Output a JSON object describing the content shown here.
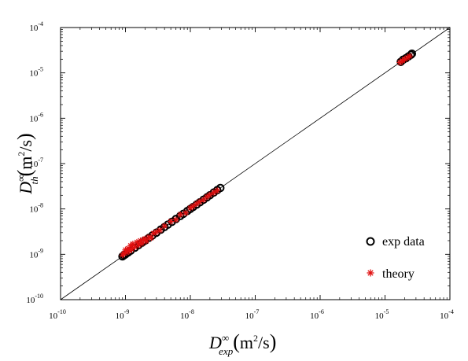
{
  "chart_data": {
    "type": "scatter",
    "xscale": "log",
    "yscale": "log",
    "xlim": [
      1e-10,
      0.0001
    ],
    "ylim": [
      1e-10,
      0.0001
    ],
    "grid": false,
    "legend_position": "bottom-right",
    "x_axis_label": {
      "symbol": "D",
      "superscript": "∞",
      "subscript": "exp",
      "unit": "m",
      "unit_power": "2",
      "unit_tail": "/s"
    },
    "y_axis_label": {
      "symbol": "D",
      "superscript": "∞",
      "subscript": "th",
      "unit": "m",
      "unit_power": "2",
      "unit_tail": "/s"
    },
    "x_ticks": [
      {
        "value": 1e-10,
        "base": "10",
        "exp": "-10"
      },
      {
        "value": 1e-09,
        "base": "10",
        "exp": "-9"
      },
      {
        "value": 1e-08,
        "base": "10",
        "exp": "-8"
      },
      {
        "value": 1e-07,
        "base": "10",
        "exp": "-7"
      },
      {
        "value": 1e-06,
        "base": "10",
        "exp": "-6"
      },
      {
        "value": 1e-05,
        "base": "10",
        "exp": "-5"
      },
      {
        "value": 0.0001,
        "base": "10",
        "exp": "-4"
      }
    ],
    "y_ticks": [
      {
        "value": 1e-10,
        "base": "10",
        "exp": "-10"
      },
      {
        "value": 1e-09,
        "base": "10",
        "exp": "-9"
      },
      {
        "value": 1e-08,
        "base": "10",
        "exp": "-8"
      },
      {
        "value": 1e-07,
        "base": "10",
        "exp": "-7"
      },
      {
        "value": 1e-06,
        "base": "10",
        "exp": "-6"
      },
      {
        "value": 1e-05,
        "base": "10",
        "exp": "-5"
      },
      {
        "value": 0.0001,
        "base": "10",
        "exp": "-4"
      }
    ],
    "reference_line": {
      "x": [
        1e-10,
        0.0001
      ],
      "y": [
        1e-10,
        0.0001
      ],
      "color": "#000000"
    },
    "series": [
      {
        "name": "exp data",
        "marker": "circle-open",
        "color": "#000000",
        "points": [
          [
            9e-10,
            9e-10
          ],
          [
            9.5e-10,
            9.5e-10
          ],
          [
            1e-09,
            1e-09
          ],
          [
            1.1e-09,
            1.1e-09
          ],
          [
            1.2e-09,
            1.2e-09
          ],
          [
            1.4e-09,
            1.4e-09
          ],
          [
            1.6e-09,
            1.6e-09
          ],
          [
            1.8e-09,
            1.8e-09
          ],
          [
            2e-09,
            2e-09
          ],
          [
            2.3e-09,
            2.3e-09
          ],
          [
            2.6e-09,
            2.6e-09
          ],
          [
            3e-09,
            3e-09
          ],
          [
            3.5e-09,
            3.5e-09
          ],
          [
            4e-09,
            4e-09
          ],
          [
            4.5e-09,
            4.5e-09
          ],
          [
            5.2e-09,
            5.2e-09
          ],
          [
            6e-09,
            6e-09
          ],
          [
            7e-09,
            7e-09
          ],
          [
            7.8e-09,
            7.8e-09
          ],
          [
            9e-09,
            9e-09
          ],
          [
            1e-08,
            1e-08
          ],
          [
            1.1e-08,
            1.1e-08
          ],
          [
            1.25e-08,
            1.25e-08
          ],
          [
            1.4e-08,
            1.4e-08
          ],
          [
            1.6e-08,
            1.6e-08
          ],
          [
            1.8e-08,
            1.8e-08
          ],
          [
            2e-08,
            2e-08
          ],
          [
            2.3e-08,
            2.3e-08
          ],
          [
            2.6e-08,
            2.6e-08
          ],
          [
            2.9e-08,
            2.9e-08
          ],
          [
            1.75e-05,
            1.75e-05
          ],
          [
            1.9e-05,
            1.95e-05
          ],
          [
            2.1e-05,
            2.1e-05
          ],
          [
            2.3e-05,
            2.3e-05
          ],
          [
            2.5e-05,
            2.5e-05
          ],
          [
            2.6e-05,
            2.65e-05
          ]
        ]
      },
      {
        "name": "theory",
        "marker": "asterisk",
        "color": "#e01010",
        "points": [
          [
            9e-10,
            9.6e-10
          ],
          [
            9.5e-10,
            1.05e-09
          ],
          [
            1e-09,
            1.25e-09
          ],
          [
            1.05e-09,
            1.1e-09
          ],
          [
            1.1e-09,
            1.35e-09
          ],
          [
            1.15e-09,
            1.2e-09
          ],
          [
            1.2e-09,
            1.55e-09
          ],
          [
            1.25e-09,
            1.3e-09
          ],
          [
            1.3e-09,
            1.7e-09
          ],
          [
            1.4e-09,
            1.45e-09
          ],
          [
            1.5e-09,
            1.85e-09
          ],
          [
            1.6e-09,
            1.6e-09
          ],
          [
            1.7e-09,
            2e-09
          ],
          [
            1.8e-09,
            1.75e-09
          ],
          [
            1.9e-09,
            2.1e-09
          ],
          [
            2e-09,
            2.2e-09
          ],
          [
            2.1e-09,
            1.95e-09
          ],
          [
            2.3e-09,
            2.4e-09
          ],
          [
            2.5e-09,
            2.3e-09
          ],
          [
            2.7e-09,
            2.9e-09
          ],
          [
            3e-09,
            3.1e-09
          ],
          [
            3.4e-09,
            3.4e-09
          ],
          [
            4e-09,
            4.2e-09
          ],
          [
            5e-09,
            5.3e-09
          ],
          [
            6e-09,
            5.8e-09
          ],
          [
            7e-09,
            7.5e-09
          ],
          [
            8.5e-09,
            8.2e-09
          ],
          [
            1e-08,
            1.05e-08
          ],
          [
            1.1e-08,
            1.15e-08
          ],
          [
            1.25e-08,
            1.3e-08
          ],
          [
            1.4e-08,
            1.45e-08
          ],
          [
            1.6e-08,
            1.6e-08
          ],
          [
            1.8e-08,
            1.85e-08
          ],
          [
            2e-08,
            2.05e-08
          ],
          [
            2.3e-08,
            2.3e-08
          ],
          [
            2.6e-08,
            2.55e-08
          ],
          [
            1.7e-05,
            1.7e-05
          ],
          [
            1.85e-05,
            1.85e-05
          ],
          [
            2e-05,
            2e-05
          ],
          [
            2.2e-05,
            2.15e-05
          ],
          [
            2.4e-05,
            2.35e-05
          ]
        ]
      }
    ]
  }
}
